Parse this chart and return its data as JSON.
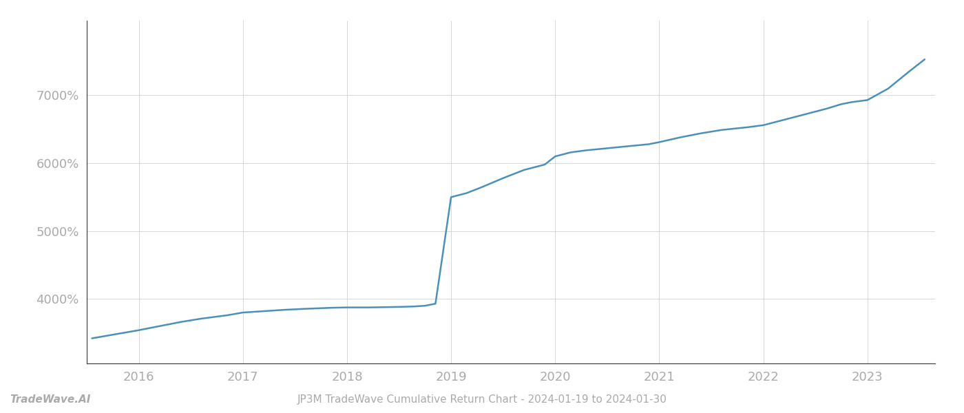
{
  "title": "JP3M TradeWave Cumulative Return Chart - 2024-01-19 to 2024-01-30",
  "watermark": "TradeWave.AI",
  "line_color": "#4a90b8",
  "background_color": "#ffffff",
  "grid_color": "#cccccc",
  "x_values": [
    2015.55,
    2015.7,
    2016.0,
    2016.2,
    2016.4,
    2016.6,
    2016.85,
    2017.0,
    2017.2,
    2017.4,
    2017.6,
    2017.85,
    2018.0,
    2018.2,
    2018.4,
    2018.55,
    2018.65,
    2018.75,
    2018.85,
    2019.0,
    2019.15,
    2019.3,
    2019.5,
    2019.7,
    2019.9,
    2020.0,
    2020.15,
    2020.3,
    2020.5,
    2020.7,
    2020.9,
    2021.0,
    2021.2,
    2021.4,
    2021.6,
    2021.85,
    2022.0,
    2022.2,
    2022.4,
    2022.6,
    2022.75,
    2022.85,
    2023.0,
    2023.2,
    2023.4,
    2023.55
  ],
  "y_values": [
    3420,
    3460,
    3540,
    3600,
    3660,
    3710,
    3760,
    3800,
    3820,
    3840,
    3855,
    3870,
    3875,
    3875,
    3880,
    3885,
    3890,
    3900,
    3930,
    5500,
    5560,
    5650,
    5780,
    5900,
    5980,
    6100,
    6160,
    6190,
    6220,
    6250,
    6280,
    6310,
    6380,
    6440,
    6490,
    6530,
    6560,
    6640,
    6720,
    6800,
    6870,
    6900,
    6930,
    7100,
    7350,
    7530
  ],
  "ylim": [
    3050,
    8100
  ],
  "xlim": [
    2015.5,
    2023.65
  ],
  "yticks": [
    4000,
    5000,
    6000,
    7000
  ],
  "xticks": [
    2016,
    2017,
    2018,
    2019,
    2020,
    2021,
    2022,
    2023
  ],
  "tick_color": "#aaaaaa",
  "tick_fontsize": 13,
  "title_fontsize": 11,
  "watermark_fontsize": 11,
  "line_width": 1.8,
  "spine_color": "#333333"
}
